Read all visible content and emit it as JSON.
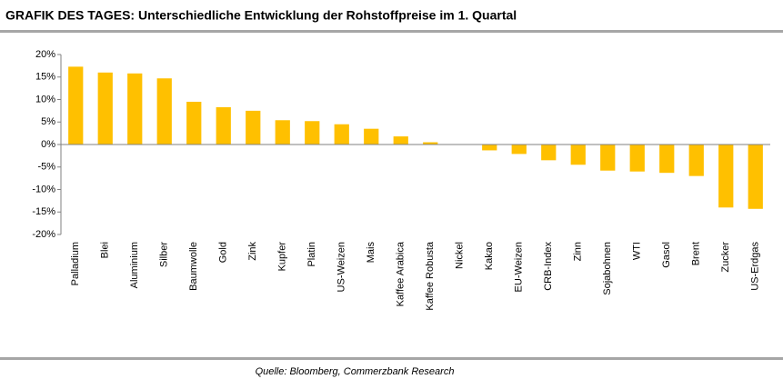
{
  "chart_data": {
    "type": "bar",
    "title": "GRAFIK DES TAGES: Unterschiedliche Entwicklung der Rohstoffpreise im 1. Quartal",
    "source": "Quelle: Bloomberg, Commerzbank Research",
    "categories": [
      "Palladium",
      "Blei",
      "Aluminium",
      "Silber",
      "Baumwolle",
      "Gold",
      "Zink",
      "Kupfer",
      "Platin",
      "US-Weizen",
      "Mais",
      "Kaffee Arabica",
      "Kaffee Robusta",
      "Nickel",
      "Kakao",
      "EU-Weizen",
      "CRB-Index",
      "Zinn",
      "Sojabohnen",
      "WTI",
      "Gasol",
      "Brent",
      "Zucker",
      "US-Erdgas"
    ],
    "values": [
      17.3,
      16,
      15.8,
      14.7,
      9.5,
      8.3,
      7.5,
      5.4,
      5.2,
      4.5,
      3.5,
      1.8,
      0.5,
      0.1,
      -1.3,
      -2.1,
      -3.5,
      -4.5,
      -5.8,
      -6,
      -6.3,
      -7,
      -14,
      -14.3
    ],
    "color": "#ffc000",
    "ylim": [
      -20,
      20
    ],
    "yticks": [
      {
        "value": 20,
        "label": "20%"
      },
      {
        "value": 15,
        "label": "15%"
      },
      {
        "value": 10,
        "label": "10%"
      },
      {
        "value": 5,
        "label": "5%"
      },
      {
        "value": 0,
        "label": "0%"
      },
      {
        "value": -5,
        "label": "-5%"
      },
      {
        "value": -10,
        "label": "-10%"
      },
      {
        "value": -15,
        "label": "-15%"
      },
      {
        "value": -20,
        "label": "-20%"
      }
    ],
    "grid": false
  }
}
